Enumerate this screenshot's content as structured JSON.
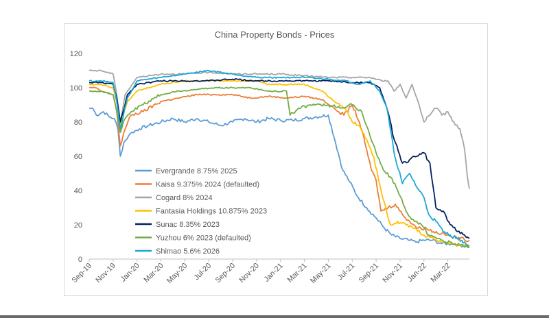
{
  "chart_data": {
    "type": "line",
    "title": "China Property Bonds - Prices",
    "xlabel": "",
    "ylabel": "",
    "ylim": [
      0,
      120
    ],
    "yticks": [
      0,
      20,
      40,
      60,
      80,
      100,
      120
    ],
    "x_tick_labels": [
      "Sep-19",
      "Nov-19",
      "Jan-20",
      "Mar-20",
      "May-20",
      "Jul-20",
      "Sep-20",
      "Nov-20",
      "Jan-21",
      "Mar-21",
      "May-21",
      "Jul-21",
      "Sep-21",
      "Nov-21",
      "Jan-22",
      "Mar-22"
    ],
    "x_month_range": [
      0,
      31.8
    ],
    "legend_position": "left-inside",
    "series": [
      {
        "name": "Evergrande 8.75% 2025",
        "color": "#5b9bd5",
        "points": [
          [
            0,
            88
          ],
          [
            0.3,
            88
          ],
          [
            0.6,
            84
          ],
          [
            1.2,
            86
          ],
          [
            1.7,
            83
          ],
          [
            2.1,
            82
          ],
          [
            2.4,
            76
          ],
          [
            2.6,
            60
          ],
          [
            2.9,
            68
          ],
          [
            3.3,
            72
          ],
          [
            3.6,
            74
          ],
          [
            4.2,
            76
          ],
          [
            5,
            78
          ],
          [
            6,
            80
          ],
          [
            7,
            82
          ],
          [
            8,
            80
          ],
          [
            9,
            82
          ],
          [
            10,
            80
          ],
          [
            11,
            78
          ],
          [
            12,
            80
          ],
          [
            13,
            82
          ],
          [
            14,
            80
          ],
          [
            15,
            82
          ],
          [
            16,
            81
          ],
          [
            17,
            81
          ],
          [
            18,
            82
          ],
          [
            19,
            83
          ],
          [
            20,
            84
          ],
          [
            20.6,
            68
          ],
          [
            21.2,
            52
          ],
          [
            21.8,
            45
          ],
          [
            22.4,
            37
          ],
          [
            23.2,
            30
          ],
          [
            24,
            24
          ],
          [
            24.7,
            18
          ],
          [
            25.3,
            14
          ],
          [
            26,
            12
          ],
          [
            26.7,
            11
          ],
          [
            27.3,
            10
          ],
          [
            28,
            11
          ],
          [
            28.7,
            11
          ],
          [
            29.5,
            9
          ],
          [
            30.5,
            9
          ],
          [
            31.8,
            7
          ]
        ]
      },
      {
        "name": "Kaisa 9.375% 2024 (defaulted)",
        "color": "#ed7d31",
        "points": [
          [
            0,
            100
          ],
          [
            0.5,
            100
          ],
          [
            1,
            98
          ],
          [
            1.5,
            97
          ],
          [
            2,
            96
          ],
          [
            2.3,
            86
          ],
          [
            2.6,
            66
          ],
          [
            3,
            76
          ],
          [
            3.5,
            84
          ],
          [
            4.5,
            86
          ],
          [
            6,
            92
          ],
          [
            7.5,
            94
          ],
          [
            9,
            96
          ],
          [
            10.5,
            96
          ],
          [
            12,
            96
          ],
          [
            13.5,
            94
          ],
          [
            15,
            95
          ],
          [
            16.5,
            94
          ],
          [
            18,
            95
          ],
          [
            19.5,
            93
          ],
          [
            20.5,
            88
          ],
          [
            21.3,
            84
          ],
          [
            22,
            90
          ],
          [
            22.6,
            80
          ],
          [
            23.2,
            64
          ],
          [
            23.6,
            52
          ],
          [
            24,
            46
          ],
          [
            24.4,
            28
          ],
          [
            25,
            30
          ],
          [
            25.6,
            32
          ],
          [
            26.2,
            26
          ],
          [
            26.8,
            22
          ],
          [
            27.5,
            18
          ],
          [
            28.2,
            18
          ],
          [
            28.8,
            16
          ],
          [
            29.5,
            15
          ],
          [
            30.3,
            13
          ],
          [
            31,
            12
          ],
          [
            31.8,
            11
          ]
        ]
      },
      {
        "name": "Cogard 8% 2024",
        "color": "#a5a5a5",
        "points": [
          [
            0,
            110
          ],
          [
            1,
            110
          ],
          [
            2,
            108
          ],
          [
            2.3,
            96
          ],
          [
            2.6,
            80
          ],
          [
            3,
            96
          ],
          [
            4,
            106
          ],
          [
            6,
            108
          ],
          [
            8,
            108
          ],
          [
            10,
            109
          ],
          [
            12,
            108
          ],
          [
            14,
            108
          ],
          [
            16,
            108
          ],
          [
            18,
            107
          ],
          [
            20,
            106
          ],
          [
            22,
            106
          ],
          [
            23.5,
            106
          ],
          [
            24.5,
            104
          ],
          [
            25,
            104
          ],
          [
            25.5,
            98
          ],
          [
            26,
            102
          ],
          [
            26.5,
            94
          ],
          [
            27,
            102
          ],
          [
            27.5,
            92
          ],
          [
            28,
            80
          ],
          [
            28.5,
            84
          ],
          [
            29,
            88
          ],
          [
            29.5,
            84
          ],
          [
            30,
            86
          ],
          [
            30.5,
            80
          ],
          [
            31,
            76
          ],
          [
            31.4,
            64
          ],
          [
            31.6,
            50
          ],
          [
            31.8,
            41
          ]
        ]
      },
      {
        "name": "Fantasia Holdings 10.875% 2023",
        "color": "#ffc000",
        "points": [
          [
            0,
            102
          ],
          [
            1,
            102
          ],
          [
            2,
            100
          ],
          [
            2.3,
            92
          ],
          [
            2.6,
            78
          ],
          [
            3.2,
            92
          ],
          [
            4,
            98
          ],
          [
            6,
            102
          ],
          [
            8,
            104
          ],
          [
            10,
            104
          ],
          [
            12,
            104
          ],
          [
            14,
            104
          ],
          [
            15,
            102
          ],
          [
            16,
            102
          ],
          [
            18,
            102
          ],
          [
            19.5,
            98
          ],
          [
            20.5,
            92
          ],
          [
            21.4,
            88
          ],
          [
            22,
            80
          ],
          [
            22.6,
            78
          ],
          [
            23.2,
            70
          ],
          [
            23.8,
            60
          ],
          [
            24.2,
            46
          ],
          [
            24.8,
            30
          ],
          [
            25.2,
            20
          ],
          [
            25.8,
            22
          ],
          [
            26.5,
            20
          ],
          [
            27.2,
            18
          ],
          [
            28,
            14
          ],
          [
            28.8,
            12
          ],
          [
            29.6,
            10
          ],
          [
            30.4,
            9
          ],
          [
            31.2,
            8
          ],
          [
            31.8,
            8
          ]
        ]
      },
      {
        "name": "Sunac 8.35% 2023",
        "color": "#002060",
        "points": [
          [
            0,
            103
          ],
          [
            1,
            103
          ],
          [
            2,
            102
          ],
          [
            2.3,
            94
          ],
          [
            2.6,
            80
          ],
          [
            3.2,
            96
          ],
          [
            4,
            102
          ],
          [
            6,
            104
          ],
          [
            8,
            104
          ],
          [
            10,
            104
          ],
          [
            12,
            105
          ],
          [
            14,
            104
          ],
          [
            16,
            104
          ],
          [
            18,
            104
          ],
          [
            20,
            104
          ],
          [
            22,
            103
          ],
          [
            23.5,
            103
          ],
          [
            24.3,
            100
          ],
          [
            24.9,
            88
          ],
          [
            25.5,
            70
          ],
          [
            26.2,
            56
          ],
          [
            26.8,
            58
          ],
          [
            27.4,
            60
          ],
          [
            28,
            62
          ],
          [
            28.5,
            56
          ],
          [
            29,
            30
          ],
          [
            29.6,
            28
          ],
          [
            30.2,
            20
          ],
          [
            30.8,
            16
          ],
          [
            31.4,
            14
          ],
          [
            31.8,
            12
          ]
        ]
      },
      {
        "name": "Yuzhou 6% 2023 (defaulted)",
        "color": "#70ad47",
        "points": [
          [
            0,
            98
          ],
          [
            1,
            98
          ],
          [
            2,
            96
          ],
          [
            2.3,
            86
          ],
          [
            2.6,
            74
          ],
          [
            3,
            82
          ],
          [
            3.5,
            86
          ],
          [
            4.5,
            90
          ],
          [
            6,
            96
          ],
          [
            7.5,
            98
          ],
          [
            9,
            99
          ],
          [
            10.5,
            100
          ],
          [
            12,
            100
          ],
          [
            13.5,
            100
          ],
          [
            15,
            98
          ],
          [
            16.5,
            98
          ],
          [
            16.8,
            84
          ],
          [
            17.5,
            88
          ],
          [
            18.5,
            90
          ],
          [
            20,
            90
          ],
          [
            21,
            88
          ],
          [
            22,
            90
          ],
          [
            22.8,
            86
          ],
          [
            23.4,
            74
          ],
          [
            24,
            62
          ],
          [
            24.6,
            52
          ],
          [
            25.2,
            48
          ],
          [
            25.8,
            40
          ],
          [
            26.5,
            28
          ],
          [
            27.2,
            22
          ],
          [
            27.8,
            20
          ],
          [
            28.4,
            14
          ],
          [
            29.1,
            12
          ],
          [
            29.8,
            10
          ],
          [
            30.6,
            9
          ],
          [
            31.3,
            8
          ],
          [
            31.8,
            7
          ]
        ]
      },
      {
        "name": "Shimao 5.6% 2026",
        "color": "#1ba7d8",
        "points": [
          [
            0,
            104
          ],
          [
            1,
            104
          ],
          [
            2,
            103
          ],
          [
            2.3,
            92
          ],
          [
            2.6,
            76
          ],
          [
            3.2,
            94
          ],
          [
            4,
            104
          ],
          [
            6,
            106
          ],
          [
            8,
            108
          ],
          [
            10,
            110
          ],
          [
            12,
            108
          ],
          [
            14,
            106
          ],
          [
            16,
            106
          ],
          [
            18,
            106
          ],
          [
            20,
            105
          ],
          [
            21.5,
            104
          ],
          [
            22.5,
            102
          ],
          [
            23.5,
            104
          ],
          [
            24.3,
            98
          ],
          [
            24.9,
            88
          ],
          [
            25.5,
            62
          ],
          [
            26.2,
            44
          ],
          [
            26.8,
            50
          ],
          [
            27.4,
            42
          ],
          [
            28,
            36
          ],
          [
            28.4,
            26
          ],
          [
            29,
            22
          ],
          [
            29.6,
            16
          ],
          [
            30.2,
            14
          ],
          [
            30.8,
            12
          ],
          [
            31.4,
            10
          ],
          [
            31.8,
            8
          ]
        ]
      }
    ]
  }
}
